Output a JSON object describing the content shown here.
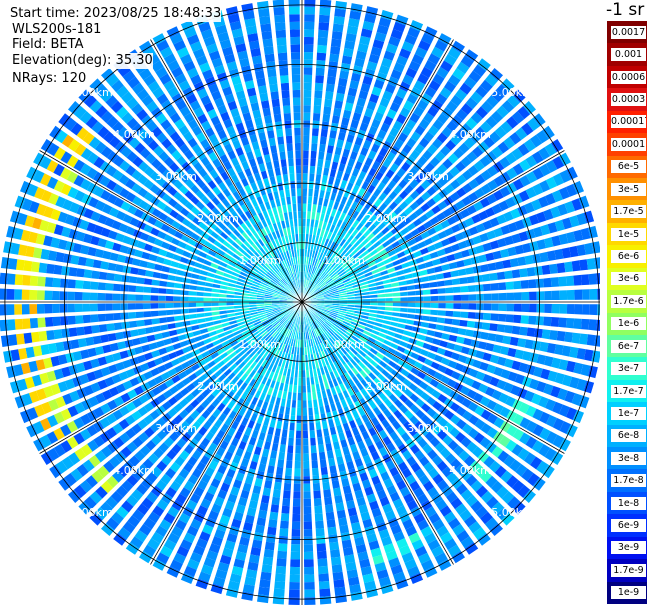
{
  "header": {
    "start_time": "Start time: 2023/08/25 18:48:33",
    "device": "WLS200s-181",
    "field": "Field: BETA",
    "elevation": "Elevation(deg): 35.30",
    "nrays": "NRays: 120"
  },
  "chart_data": {
    "type": "heatmap",
    "projection": "polar",
    "title": "",
    "field": "BETA",
    "n_rays": 120,
    "elevation_deg": 35.3,
    "range_unit": "km",
    "range_rings_km": [
      1.0,
      2.0,
      3.0,
      4.0,
      5.0
    ],
    "max_range_km": 5.1,
    "range_ring_labels": [
      "1.00km",
      "2.00km",
      "3.00km",
      "4.00km",
      "5.00km"
    ],
    "azimuth_spoke_step_deg": 30,
    "scale": "log",
    "colorbar_title": "-1 sr",
    "colorbar_ticks": [
      "0.0017",
      "0.001",
      "0.0006",
      "0.0003",
      "0.00017",
      "0.0001",
      "6e-5",
      "3e-5",
      "1.7e-5",
      "1e-5",
      "6e-6",
      "3e-6",
      "1.7e-6",
      "1e-6",
      "6e-7",
      "3e-7",
      "1.7e-7",
      "1e-7",
      "6e-8",
      "3e-8",
      "1.7e-8",
      "1e-8",
      "6e-9",
      "3e-9",
      "1.7e-9",
      "1e-9"
    ],
    "colorbar_colors": [
      "#800000",
      "#a00000",
      "#c00000",
      "#e01010",
      "#ff2000",
      "#ff4000",
      "#ff6a00",
      "#ff9000",
      "#ffb000",
      "#ffd800",
      "#f8f000",
      "#e0ff20",
      "#b8ff40",
      "#90ff60",
      "#60ffa0",
      "#30ffd0",
      "#10f0f0",
      "#00d0ff",
      "#00b0ff",
      "#0090ff",
      "#0070ff",
      "#0050ff",
      "#0030ff",
      "#0010f0",
      "#0000c0",
      "#000080"
    ],
    "feature_bands": [
      {
        "description": "aerosol/cloud layer",
        "range_km": [
          4.3,
          4.6
        ],
        "azimuth_deg": [
          225,
          300
        ],
        "value": 3e-06
      },
      {
        "description": "aerosol/cloud layer",
        "range_km": [
          4.5,
          4.9
        ],
        "azimuth_deg": [
          240,
          310
        ],
        "value": 1e-05
      },
      {
        "description": "layer segment",
        "range_km": [
          4.0,
          4.3
        ],
        "azimuth_deg": [
          115,
          135
        ],
        "value": 3e-07
      },
      {
        "description": "layer segment",
        "range_km": [
          4.3,
          4.6
        ],
        "azimuth_deg": [
          150,
          165
        ],
        "value": 1.7e-07
      }
    ]
  }
}
